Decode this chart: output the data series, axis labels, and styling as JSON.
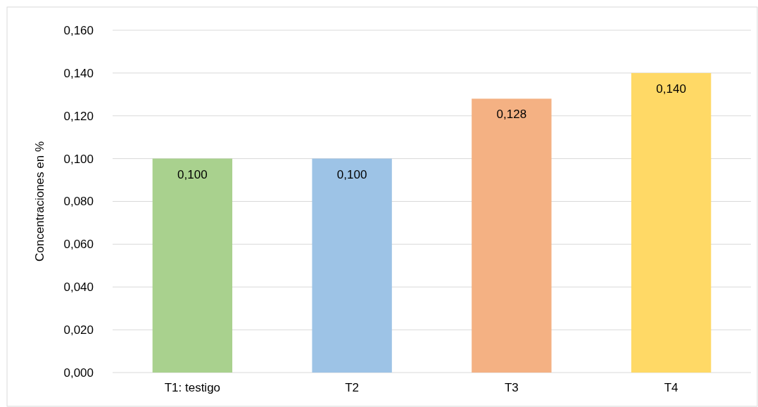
{
  "chart_data": {
    "type": "bar",
    "ylabel": "Concentraciones en %",
    "categories": [
      "T1: testigo",
      "T2",
      "T3",
      "T4"
    ],
    "values": [
      0.1,
      0.1,
      0.128,
      0.14
    ],
    "value_labels": [
      "0,100",
      "0,100",
      "0,128",
      "0,140"
    ],
    "colors": [
      "#a9d18e",
      "#9dc3e6",
      "#f4b183",
      "#ffd966"
    ],
    "ylim": [
      0,
      0.16
    ],
    "yticks": [
      {
        "value": 0,
        "label": "0,000"
      },
      {
        "value": 0.02,
        "label": "0,020"
      },
      {
        "value": 0.04,
        "label": "0,040"
      },
      {
        "value": 0.06,
        "label": "0,060"
      },
      {
        "value": 0.08,
        "label": "0,080"
      },
      {
        "value": 0.1,
        "label": "0,100"
      },
      {
        "value": 0.12,
        "label": "0,120"
      },
      {
        "value": 0.14,
        "label": "0,140"
      },
      {
        "value": 0.16,
        "label": "0,160"
      }
    ],
    "grid": "y"
  }
}
